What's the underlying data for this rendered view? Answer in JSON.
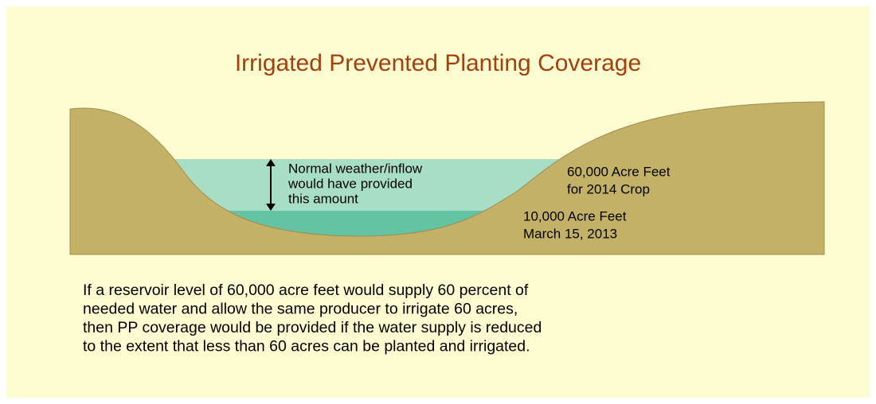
{
  "title": "Irrigated Prevented Planting Coverage",
  "annotation": {
    "lines": [
      "Normal weather/inflow",
      "would have provided",
      "this amount"
    ]
  },
  "upper_level": {
    "lines": [
      "60,000 Acre Feet",
      "for 2014 Crop"
    ]
  },
  "lower_level": {
    "lines": [
      "10,000 Acre Feet",
      "March 15, 2013"
    ]
  },
  "paragraph": {
    "lines": [
      "If a reservoir level of 60,000 acre feet would supply 60 percent of",
      "needed water and allow the same producer to irrigate 60 acres,",
      "then PP coverage would be provided if the water supply is reduced",
      "to the extent that less than 60 acres can be planted and irrigated."
    ]
  }
}
